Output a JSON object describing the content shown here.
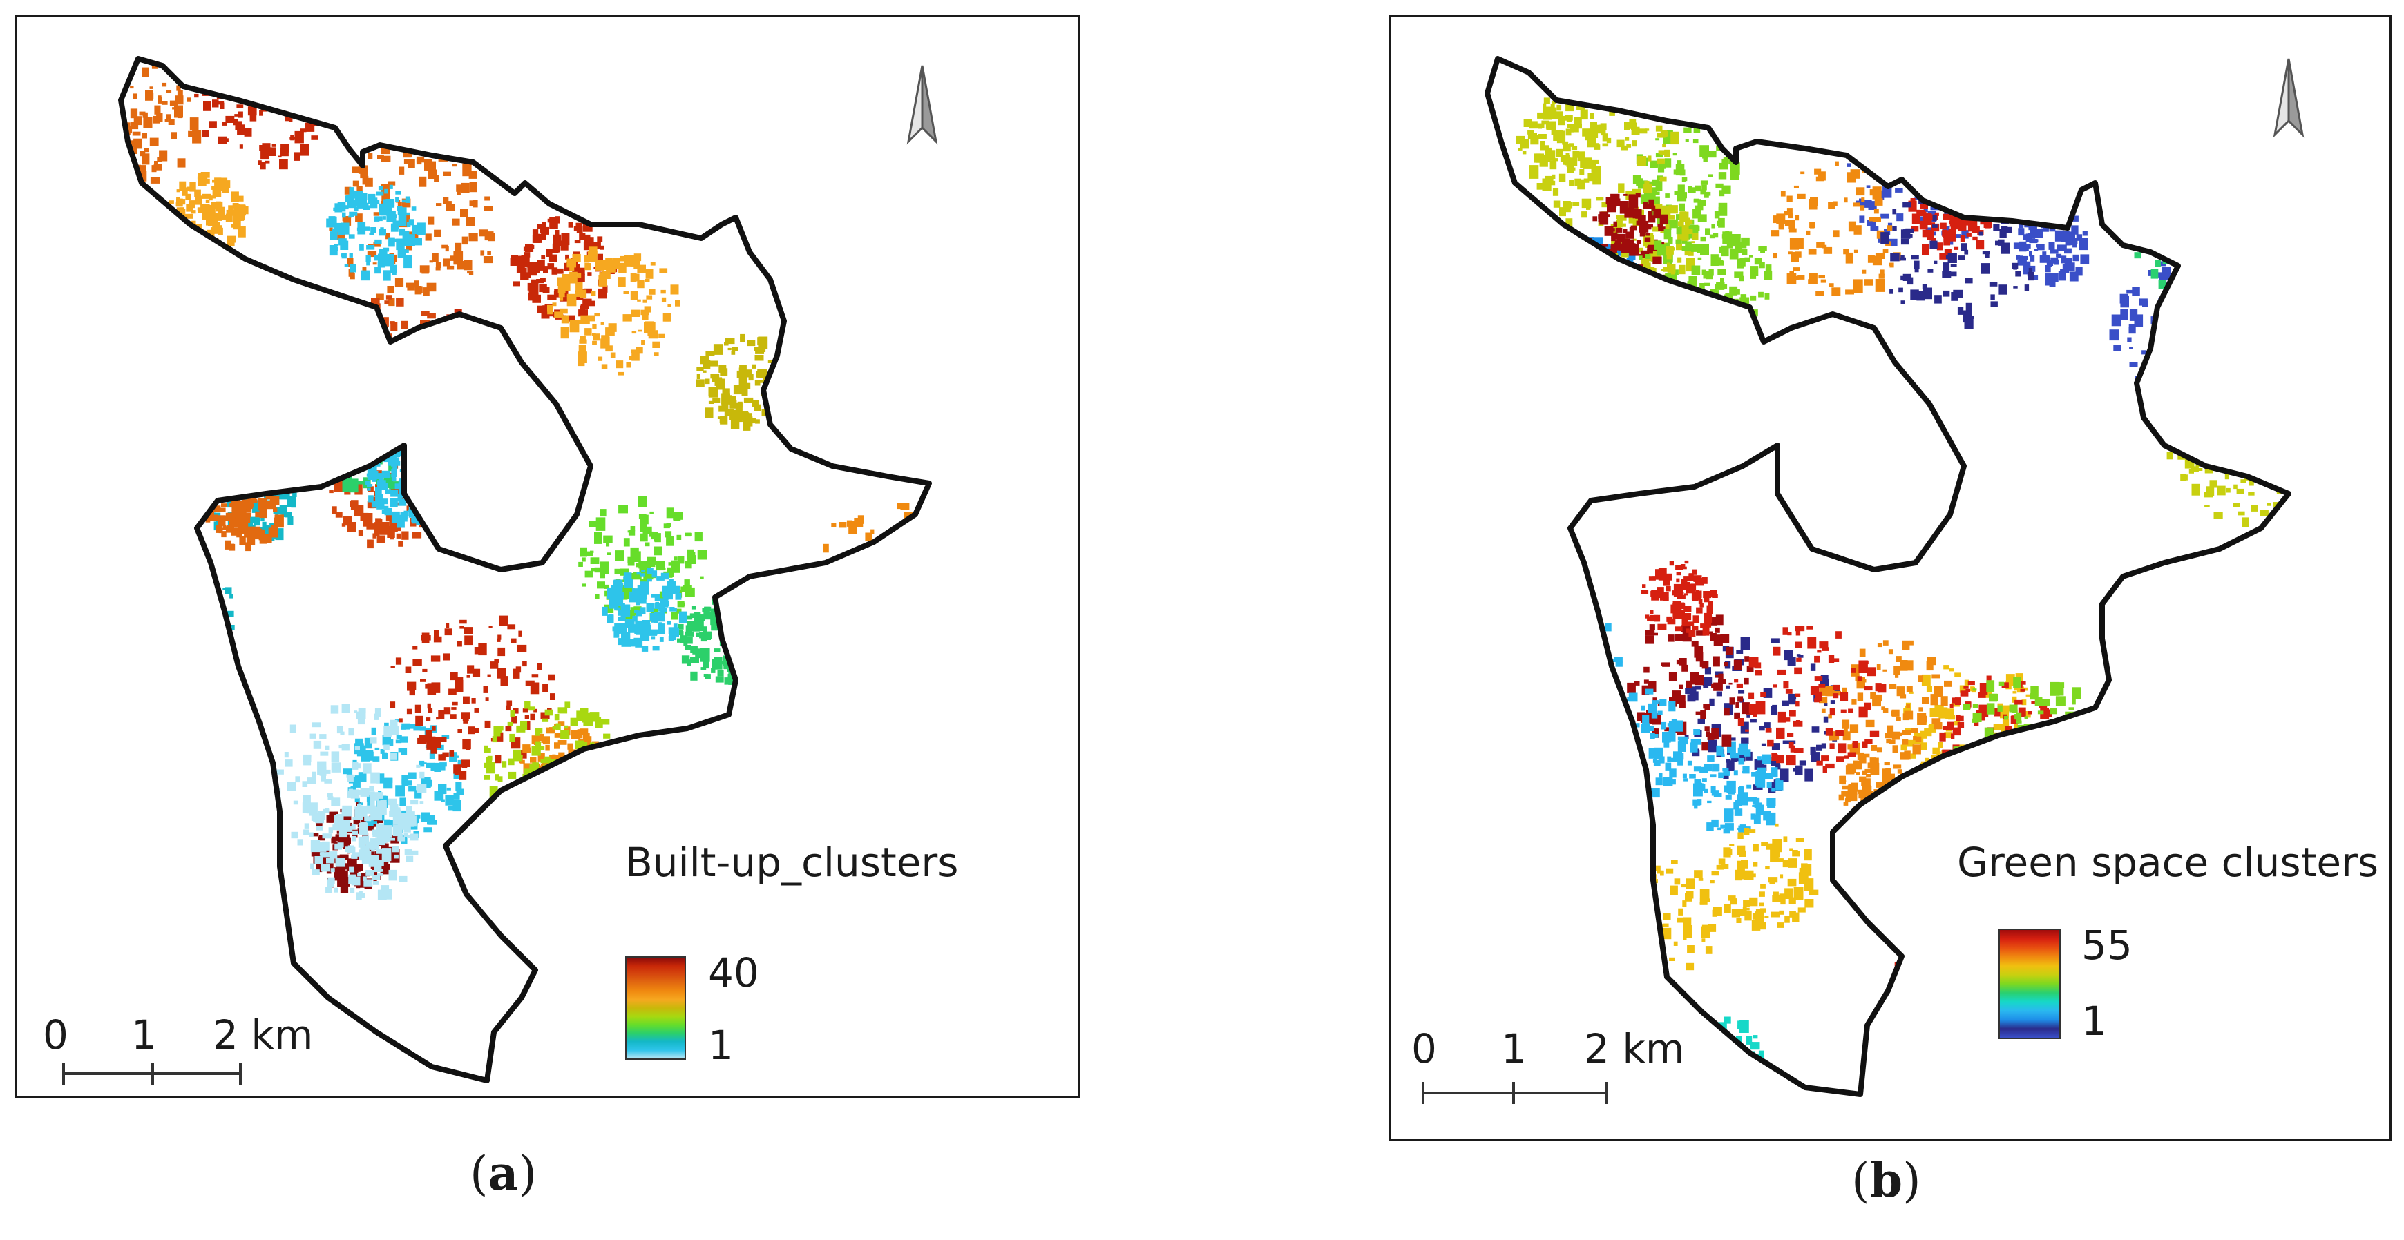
{
  "panels": [
    {
      "id": "a",
      "legend": {
        "title": "Built-up_clusters",
        "max": "40",
        "min": "1"
      },
      "scale": {
        "labels": [
          "0",
          "1",
          "2 km"
        ]
      },
      "caption": {
        "open": "(",
        "letter": "a",
        "close": ")"
      },
      "colors": [
        "#b4e6f5",
        "#2ec4ea",
        "#14b8c8",
        "#2cd06a",
        "#66dd2a",
        "#a8d810",
        "#c8b80a",
        "#f6a820",
        "#f08a10",
        "#e26a10",
        "#d6480e",
        "#c82808",
        "#8a0a0a"
      ]
    },
    {
      "id": "b",
      "legend": {
        "title": "Green space clusters",
        "max": "55",
        "min": "1"
      },
      "scale": {
        "labels": [
          "0",
          "1",
          "2 km"
        ]
      },
      "caption": {
        "open": "(",
        "letter": "b",
        "close": ")"
      },
      "colors": [
        "#3a4fc8",
        "#2a2a8a",
        "#1e8ee8",
        "#2ab8f0",
        "#16d8c8",
        "#2ad070",
        "#7ed820",
        "#c8d010",
        "#f0c010",
        "#f08a10",
        "#e85010",
        "#d62010",
        "#a00c0c"
      ]
    }
  ]
}
